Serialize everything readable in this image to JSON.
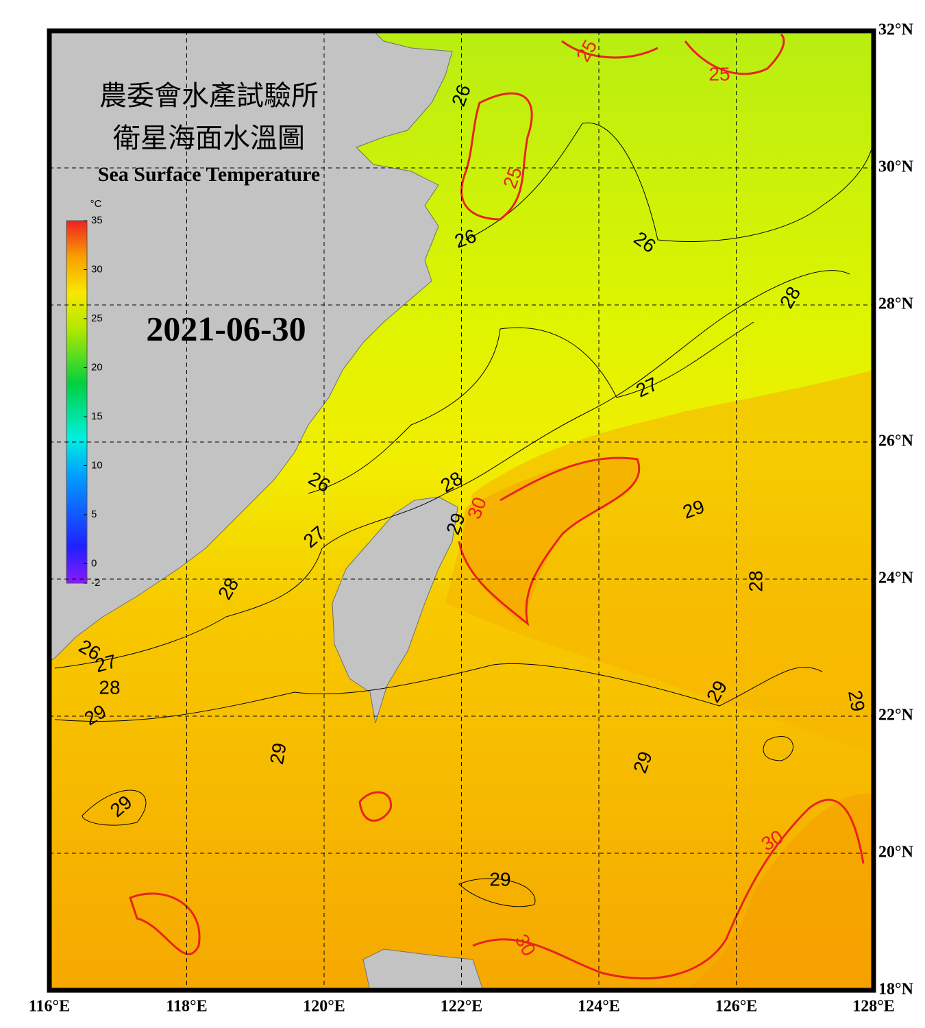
{
  "header": {
    "title_zh_1": "農委會水產試驗所",
    "title_zh_2": "衛星海面水溫圖",
    "title_en": "Sea Surface Temperature",
    "date": "2021-06-30"
  },
  "map": {
    "xlim": [
      116,
      128
    ],
    "ylim": [
      18,
      32
    ],
    "xticks": [
      {
        "value": 116,
        "label": "116°E"
      },
      {
        "value": 118,
        "label": "118°E"
      },
      {
        "value": 120,
        "label": "120°E"
      },
      {
        "value": 122,
        "label": "122°E"
      },
      {
        "value": 124,
        "label": "124°E"
      },
      {
        "value": 126,
        "label": "126°E"
      },
      {
        "value": 128,
        "label": "128°E"
      }
    ],
    "yticks": [
      {
        "value": 18,
        "label": "18°N"
      },
      {
        "value": 20,
        "label": "20°N"
      },
      {
        "value": 22,
        "label": "22°N"
      },
      {
        "value": 24,
        "label": "24°N"
      },
      {
        "value": 26,
        "label": "26°N"
      },
      {
        "value": 28,
        "label": "28°N"
      },
      {
        "value": 30,
        "label": "30°N"
      },
      {
        "value": 32,
        "label": "32°N"
      }
    ],
    "grid": true
  },
  "colorbar": {
    "unit": "°C",
    "range": [
      -2,
      35
    ],
    "ticks": [
      35,
      30,
      25,
      20,
      15,
      10,
      5,
      0,
      -2
    ]
  },
  "contour_labels": [
    {
      "value": 25,
      "color": "#e8231e"
    },
    {
      "value": 25,
      "color": "#e8231e"
    },
    {
      "value": 25,
      "color": "#e8231e"
    },
    {
      "value": 26,
      "color": "#000000"
    },
    {
      "value": 26,
      "color": "#000000"
    },
    {
      "value": 26,
      "color": "#000000"
    },
    {
      "value": 26,
      "color": "#000000"
    },
    {
      "value": 26,
      "color": "#000000"
    },
    {
      "value": 27,
      "color": "#000000"
    },
    {
      "value": 27,
      "color": "#000000"
    },
    {
      "value": 27,
      "color": "#000000"
    },
    {
      "value": 28,
      "color": "#000000"
    },
    {
      "value": 28,
      "color": "#000000"
    },
    {
      "value": 28,
      "color": "#000000"
    },
    {
      "value": 28,
      "color": "#000000"
    },
    {
      "value": 28,
      "color": "#000000"
    },
    {
      "value": 29,
      "color": "#000000"
    },
    {
      "value": 29,
      "color": "#000000"
    },
    {
      "value": 29,
      "color": "#000000"
    },
    {
      "value": 29,
      "color": "#000000"
    },
    {
      "value": 29,
      "color": "#000000"
    },
    {
      "value": 29,
      "color": "#000000"
    },
    {
      "value": 29,
      "color": "#000000"
    },
    {
      "value": 29,
      "color": "#000000"
    },
    {
      "value": 29,
      "color": "#000000"
    },
    {
      "value": 30,
      "color": "#e8231e"
    },
    {
      "value": 30,
      "color": "#e8231e"
    },
    {
      "value": 30,
      "color": "#e8231e"
    }
  ]
}
